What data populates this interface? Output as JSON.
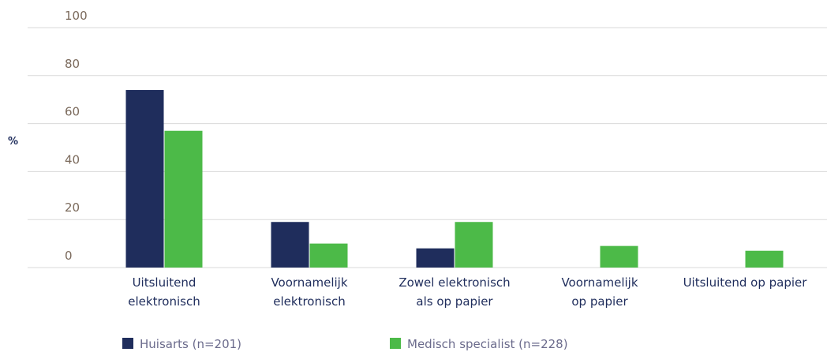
{
  "chart_data": {
    "type": "bar",
    "ylabel": "%",
    "categories": [
      "Uitsluitend\nelektronisch",
      "Voornamelijk\nelektronisch",
      "Zowel elektronisch\nals op papier",
      "Voornamelijk\nop papier",
      "Uitsluitend op papier"
    ],
    "series": [
      {
        "name": "Huisarts (n=201)",
        "color": "#1f2d5c",
        "values": [
          74,
          19,
          8,
          0,
          0
        ]
      },
      {
        "name": "Medisch specialist (n=228)",
        "color": "#4cba48",
        "values": [
          57,
          10,
          19,
          9,
          7
        ]
      }
    ],
    "ylim": [
      0,
      100
    ],
    "yticks": [
      0,
      20,
      40,
      60,
      80,
      100
    ],
    "grid": true,
    "legend": "bottom"
  }
}
